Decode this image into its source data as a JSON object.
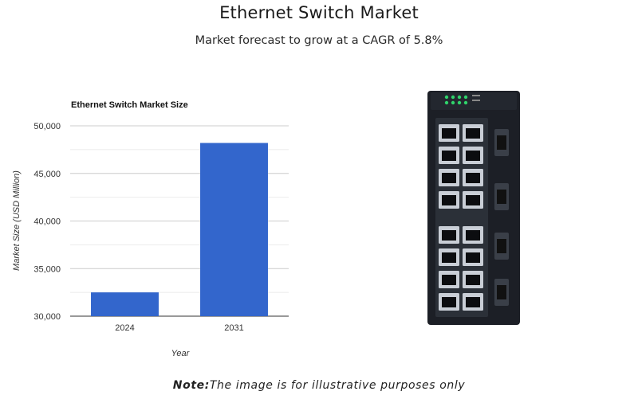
{
  "header": {
    "title": "Ethernet Switch Market",
    "subtitle": "Market forecast to grow at a CAGR of 5.8%"
  },
  "chart_data": {
    "type": "bar",
    "title": "Ethernet Switch Market Size",
    "categories": [
      "2024",
      "2031"
    ],
    "values": [
      32500,
      48200
    ],
    "xlabel": "Year",
    "ylabel": "Market Size (USD Million)",
    "ylim": [
      30000,
      50000
    ],
    "yticks": [
      "30,000",
      "35,000",
      "40,000",
      "45,000",
      "50,000"
    ],
    "ytick_values": [
      30000,
      35000,
      40000,
      45000,
      50000
    ],
    "grid": true,
    "bar_color": "#3366cc"
  },
  "footnote": {
    "strong": "Note:",
    "text": "The image is for illustrative purposes only"
  }
}
